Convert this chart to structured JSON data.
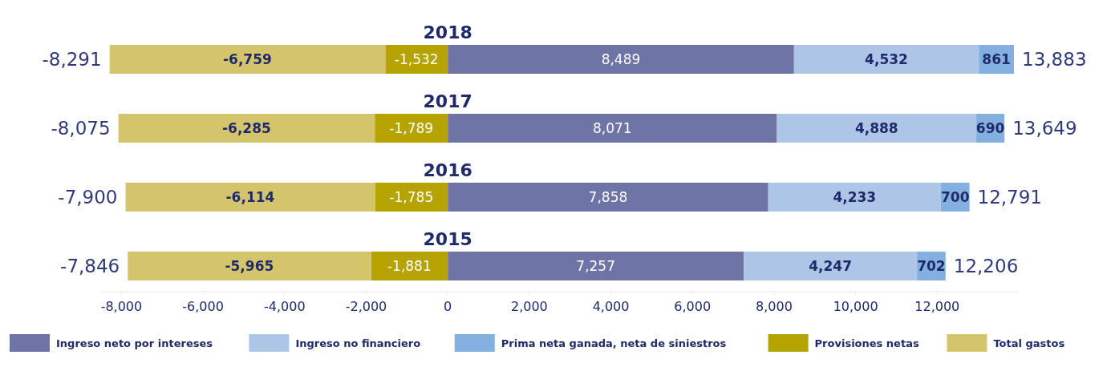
{
  "chart_data": {
    "type": "bar",
    "orientation": "horizontal",
    "stacked": true,
    "legend": "bottom",
    "grid": false,
    "categories": [
      "2018",
      "2017",
      "2016",
      "2015"
    ],
    "xlim": [
      -8500,
      14000
    ],
    "xticks": [
      {
        "value": -8000,
        "label": "-8,000"
      },
      {
        "value": -6000,
        "label": "-6,000"
      },
      {
        "value": -4000,
        "label": "-4,000"
      },
      {
        "value": -2000,
        "label": "-2,000"
      },
      0,
      {
        "value": 2000,
        "label": "2,000"
      },
      {
        "value": 4000,
        "label": "4,000"
      },
      {
        "value": 6000,
        "label": "6,000"
      },
      {
        "value": 8000,
        "label": "8,000"
      },
      {
        "value": 10000,
        "label": "10,000"
      },
      {
        "value": 12000,
        "label": "12,000"
      }
    ],
    "series": [
      {
        "name": "Ingreso neto por intereses",
        "color": "#6e74a6",
        "values": [
          8489,
          8071,
          7858,
          7257
        ],
        "value_labels": [
          "8,489",
          "8,071",
          "7,858",
          "7,257"
        ]
      },
      {
        "name": "Ingreso no financiero",
        "color": "#adc6e8",
        "values": [
          4532,
          4888,
          4233,
          4247
        ],
        "value_labels": [
          "4,532",
          "4,888",
          "4,233",
          "4,247"
        ]
      },
      {
        "name": "Prima neta ganada, neta de siniestros",
        "color": "#83b0df",
        "values": [
          861,
          690,
          700,
          702
        ],
        "value_labels": [
          "861",
          "690",
          "700",
          "702"
        ]
      },
      {
        "name": "Provisiones netas",
        "color": "#b5a300",
        "values": [
          -1532,
          -1789,
          -1785,
          -1881
        ],
        "value_labels": [
          "-1,532",
          "-1,789",
          "-1,785",
          "-1,881"
        ]
      },
      {
        "name": "Total gastos",
        "color": "#d4c56d",
        "values": [
          -6759,
          -6285,
          -6114,
          -5965
        ],
        "value_labels": [
          "-6,759",
          "-6,285",
          "-6,114",
          "-5,965"
        ]
      }
    ],
    "annotations": [
      {
        "text": "-8,291",
        "x": -8291,
        "y": "2018"
      },
      {
        "text": "13,883",
        "x": 13883,
        "y": "2018"
      },
      {
        "text": "-8,075",
        "x": -8075,
        "y": "2017"
      },
      {
        "text": "13,649",
        "x": 13649,
        "y": "2017"
      },
      {
        "text": "-7,900",
        "x": -7900,
        "y": "2016"
      },
      {
        "text": "12,791",
        "x": 12791,
        "y": "2016"
      },
      {
        "text": "-7,846",
        "x": -7846,
        "y": "2015"
      },
      {
        "text": "12,206",
        "x": 12206,
        "y": "2015"
      }
    ]
  }
}
